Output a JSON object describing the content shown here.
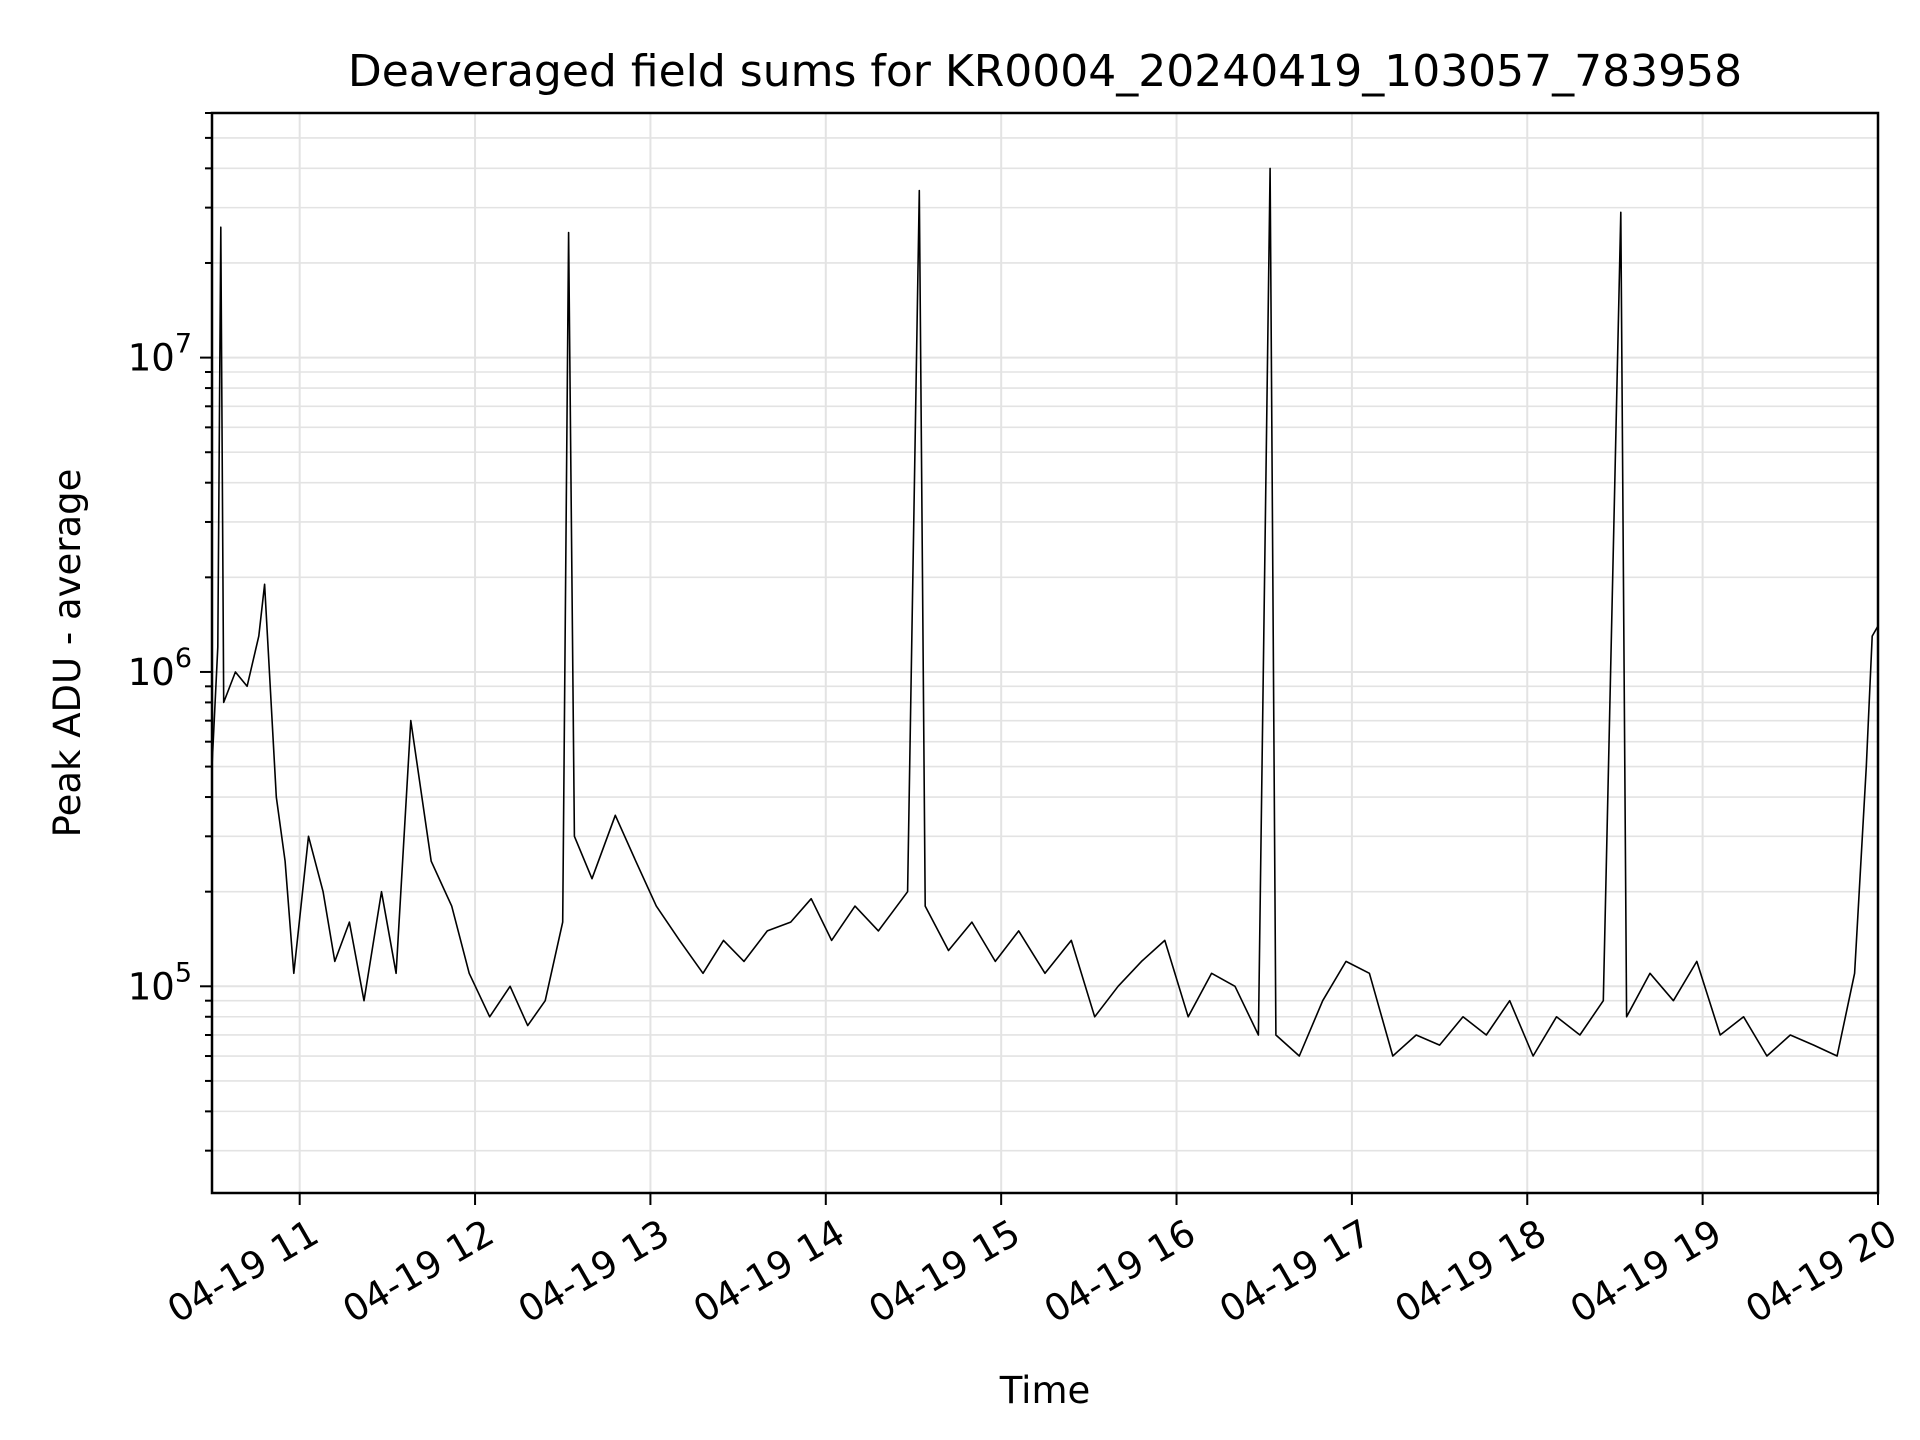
{
  "chart_data": {
    "type": "line",
    "title": "Deaveraged field sums for KR0004_20240419_103057_783958",
    "xlabel": "Time",
    "ylabel": "Peak ADU - average",
    "xlim": [
      "2024-04-19 10:30",
      "2024-04-19 20:00"
    ],
    "ylim": [
      22000,
      60000000
    ],
    "yscale": "log",
    "grid": "on (major and minor)",
    "x_ticks": [
      {
        "value": "2024-04-19 11:00",
        "label": "04-19 11"
      },
      {
        "value": "2024-04-19 12:00",
        "label": "04-19 12"
      },
      {
        "value": "2024-04-19 13:00",
        "label": "04-19 13"
      },
      {
        "value": "2024-04-19 14:00",
        "label": "04-19 14"
      },
      {
        "value": "2024-04-19 15:00",
        "label": "04-19 15"
      },
      {
        "value": "2024-04-19 16:00",
        "label": "04-19 16"
      },
      {
        "value": "2024-04-19 17:00",
        "label": "04-19 17"
      },
      {
        "value": "2024-04-19 18:00",
        "label": "04-19 18"
      },
      {
        "value": "2024-04-19 19:00",
        "label": "04-19 19"
      },
      {
        "value": "2024-04-19 20:00",
        "label": "04-19 20"
      }
    ],
    "y_ticks": [
      {
        "value": 100000,
        "base": "10",
        "exp": "5"
      },
      {
        "value": 1000000,
        "base": "10",
        "exp": "6"
      },
      {
        "value": 10000000,
        "base": "10",
        "exp": "7"
      }
    ],
    "series": [
      {
        "color": "#000000",
        "points": [
          [
            "2024-04-19 10:30",
            500000
          ],
          [
            "2024-04-19 10:32",
            1200000
          ],
          [
            "2024-04-19 10:33",
            26000000
          ],
          [
            "2024-04-19 10:34",
            800000
          ],
          [
            "2024-04-19 10:38",
            1000000
          ],
          [
            "2024-04-19 10:42",
            900000
          ],
          [
            "2024-04-19 10:46",
            1300000
          ],
          [
            "2024-04-19 10:48",
            1900000
          ],
          [
            "2024-04-19 10:52",
            400000
          ],
          [
            "2024-04-19 10:55",
            250000
          ],
          [
            "2024-04-19 10:58",
            110000
          ],
          [
            "2024-04-19 11:03",
            300000
          ],
          [
            "2024-04-19 11:08",
            200000
          ],
          [
            "2024-04-19 11:12",
            120000
          ],
          [
            "2024-04-19 11:17",
            160000
          ],
          [
            "2024-04-19 11:22",
            90000
          ],
          [
            "2024-04-19 11:28",
            200000
          ],
          [
            "2024-04-19 11:33",
            110000
          ],
          [
            "2024-04-19 11:38",
            700000
          ],
          [
            "2024-04-19 11:45",
            250000
          ],
          [
            "2024-04-19 11:52",
            180000
          ],
          [
            "2024-04-19 11:58",
            110000
          ],
          [
            "2024-04-19 12:05",
            80000
          ],
          [
            "2024-04-19 12:12",
            100000
          ],
          [
            "2024-04-19 12:18",
            75000
          ],
          [
            "2024-04-19 12:24",
            90000
          ],
          [
            "2024-04-19 12:30",
            160000
          ],
          [
            "2024-04-19 12:32",
            25000000
          ],
          [
            "2024-04-19 12:34",
            300000
          ],
          [
            "2024-04-19 12:40",
            220000
          ],
          [
            "2024-04-19 12:48",
            350000
          ],
          [
            "2024-04-19 12:55",
            250000
          ],
          [
            "2024-04-19 13:02",
            180000
          ],
          [
            "2024-04-19 13:10",
            140000
          ],
          [
            "2024-04-19 13:18",
            110000
          ],
          [
            "2024-04-19 13:25",
            140000
          ],
          [
            "2024-04-19 13:32",
            120000
          ],
          [
            "2024-04-19 13:40",
            150000
          ],
          [
            "2024-04-19 13:48",
            160000
          ],
          [
            "2024-04-19 13:55",
            190000
          ],
          [
            "2024-04-19 14:02",
            140000
          ],
          [
            "2024-04-19 14:10",
            180000
          ],
          [
            "2024-04-19 14:18",
            150000
          ],
          [
            "2024-04-19 14:28",
            200000
          ],
          [
            "2024-04-19 14:32",
            34000000
          ],
          [
            "2024-04-19 14:34",
            180000
          ],
          [
            "2024-04-19 14:42",
            130000
          ],
          [
            "2024-04-19 14:50",
            160000
          ],
          [
            "2024-04-19 14:58",
            120000
          ],
          [
            "2024-04-19 15:06",
            150000
          ],
          [
            "2024-04-19 15:15",
            110000
          ],
          [
            "2024-04-19 15:24",
            140000
          ],
          [
            "2024-04-19 15:32",
            80000
          ],
          [
            "2024-04-19 15:40",
            100000
          ],
          [
            "2024-04-19 15:48",
            120000
          ],
          [
            "2024-04-19 15:56",
            140000
          ],
          [
            "2024-04-19 16:04",
            80000
          ],
          [
            "2024-04-19 16:12",
            110000
          ],
          [
            "2024-04-19 16:20",
            100000
          ],
          [
            "2024-04-19 16:28",
            70000
          ],
          [
            "2024-04-19 16:32",
            40000000
          ],
          [
            "2024-04-19 16:34",
            70000
          ],
          [
            "2024-04-19 16:42",
            60000
          ],
          [
            "2024-04-19 16:50",
            90000
          ],
          [
            "2024-04-19 16:58",
            120000
          ],
          [
            "2024-04-19 17:06",
            110000
          ],
          [
            "2024-04-19 17:14",
            60000
          ],
          [
            "2024-04-19 17:22",
            70000
          ],
          [
            "2024-04-19 17:30",
            65000
          ],
          [
            "2024-04-19 17:38",
            80000
          ],
          [
            "2024-04-19 17:46",
            70000
          ],
          [
            "2024-04-19 17:54",
            90000
          ],
          [
            "2024-04-19 18:02",
            60000
          ],
          [
            "2024-04-19 18:10",
            80000
          ],
          [
            "2024-04-19 18:18",
            70000
          ],
          [
            "2024-04-19 18:26",
            90000
          ],
          [
            "2024-04-19 18:32",
            29000000
          ],
          [
            "2024-04-19 18:34",
            80000
          ],
          [
            "2024-04-19 18:42",
            110000
          ],
          [
            "2024-04-19 18:50",
            90000
          ],
          [
            "2024-04-19 18:58",
            120000
          ],
          [
            "2024-04-19 19:06",
            70000
          ],
          [
            "2024-04-19 19:14",
            80000
          ],
          [
            "2024-04-19 19:22",
            60000
          ],
          [
            "2024-04-19 19:30",
            70000
          ],
          [
            "2024-04-19 19:38",
            65000
          ],
          [
            "2024-04-19 19:46",
            60000
          ],
          [
            "2024-04-19 19:52",
            110000
          ],
          [
            "2024-04-19 19:56",
            500000
          ],
          [
            "2024-04-19 19:58",
            1300000
          ],
          [
            "2024-04-19 20:00",
            1400000
          ]
        ]
      }
    ]
  }
}
